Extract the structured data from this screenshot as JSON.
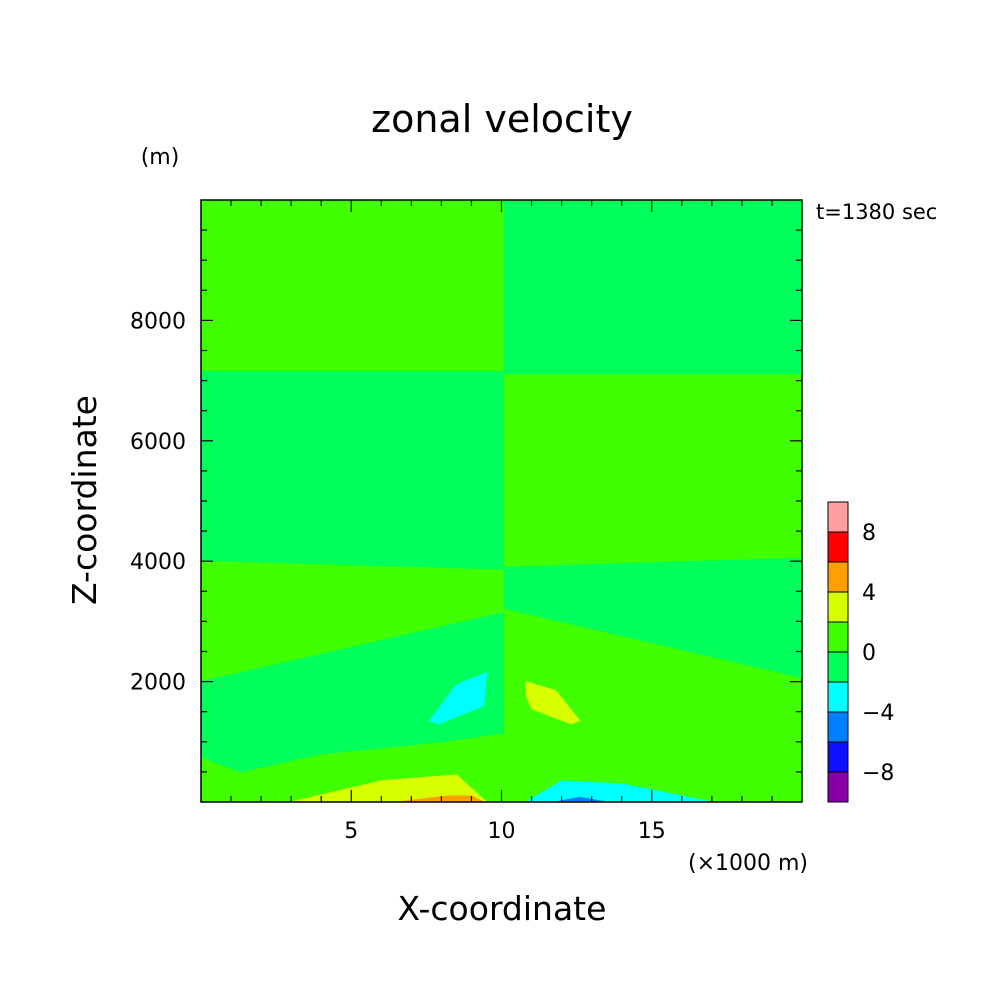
{
  "chart_data": {
    "type": "heatmap",
    "title": "zonal velocity",
    "time_label": "t=1380 sec",
    "xlabel": "X-coordinate",
    "ylabel": "Z-coordinate",
    "xunit": "(×1000 m)",
    "yunit": "(m)",
    "xlim": [
      0,
      20
    ],
    "ylim": [
      0,
      10000
    ],
    "xticks": [
      5,
      10,
      15
    ],
    "yticks": [
      2000,
      4000,
      6000,
      8000
    ],
    "contour_levels": [
      -10,
      -8,
      -6,
      -4,
      -2,
      0,
      2,
      4,
      6,
      8,
      10
    ],
    "colorbar": {
      "labels": [
        8,
        4,
        0,
        -4,
        -8
      ],
      "colors": [
        "#8a00a8",
        "#1010ff",
        "#0080ff",
        "#00ffff",
        "#00ff5a",
        "#40ff00",
        "#d8ff00",
        "#ffa000",
        "#ff0000",
        "#ffa0a0"
      ]
    },
    "regions": [
      {
        "level": "0 to 2",
        "color": "#40ff00",
        "x": [
          0,
          10.1,
          10.1,
          0
        ],
        "y": [
          7150,
          7150,
          10000,
          10000
        ]
      },
      {
        "level": "-2 to 0",
        "color": "#00ff5a",
        "x": [
          10.1,
          20,
          20,
          10.1
        ],
        "y": [
          7100,
          7100,
          10000,
          10000
        ]
      },
      {
        "level": "-2 to 0",
        "color": "#00ff5a",
        "x": [
          0,
          10.1,
          10.1,
          0
        ],
        "y": [
          4000,
          3850,
          7150,
          7150
        ]
      },
      {
        "level": "0 to 2",
        "color": "#40ff00",
        "x": [
          10.1,
          20,
          20,
          10.1
        ],
        "y": [
          3900,
          4050,
          7100,
          7100
        ]
      },
      {
        "level": "0 to 2",
        "color": "#40ff00",
        "x": [
          0,
          4,
          8,
          10.1,
          10.1,
          0
        ],
        "y": [
          2000,
          1950,
          2500,
          3150,
          3850,
          4000
        ]
      },
      {
        "level": "-2 to 0",
        "color": "#00ff5a",
        "x": [
          10.1,
          12,
          16,
          20,
          20,
          10.1
        ],
        "y": [
          3200,
          2500,
          2000,
          2050,
          4050,
          3900
        ]
      },
      {
        "level": "-2 to 0",
        "color": "#00ff5a",
        "x": [
          0,
          1.3,
          4,
          8,
          10.1,
          10.1,
          0
        ],
        "y": [
          750,
          500,
          800,
          1000,
          1150,
          3150,
          2000
        ]
      },
      {
        "level": "0 to 2",
        "color": "#40ff00",
        "x": [
          10.1,
          12,
          16,
          19,
          20,
          20,
          10.1
        ],
        "y": [
          1150,
          900,
          500,
          500,
          750,
          2050,
          3200
        ]
      },
      {
        "level": "2 to 4",
        "color": "#d8ff00",
        "x": [
          3,
          6,
          8.5,
          9.5,
          5
        ],
        "y": [
          0,
          350,
          450,
          0,
          0
        ]
      },
      {
        "level": "4 to 6",
        "color": "#ffa000",
        "x": [
          6.5,
          8.2,
          9,
          9.4,
          7
        ],
        "y": [
          0,
          100,
          100,
          0,
          0
        ]
      },
      {
        "level": "-4 to -2",
        "color": "#00ffff",
        "x": [
          10.8,
          12,
          14,
          17,
          11.5
        ],
        "y": [
          0,
          350,
          300,
          0,
          0
        ]
      },
      {
        "level": "-6 to -4",
        "color": "#0080ff",
        "x": [
          11.8,
          12.6,
          13.5,
          11.5
        ],
        "y": [
          0,
          80,
          0,
          0
        ]
      },
      {
        "level": "-4 to -2",
        "color": "#00ffff",
        "x": [
          7.6,
          8.5,
          9.5,
          9.4,
          7.9
        ],
        "y": [
          1350,
          1950,
          2150,
          1600,
          1300
        ]
      },
      {
        "level": "2 to 4",
        "color": "#d8ff00",
        "x": [
          10.8,
          11.8,
          12.6,
          12.3,
          11,
          10.8
        ],
        "y": [
          2000,
          1850,
          1350,
          1300,
          1550,
          1800
        ]
      }
    ]
  }
}
